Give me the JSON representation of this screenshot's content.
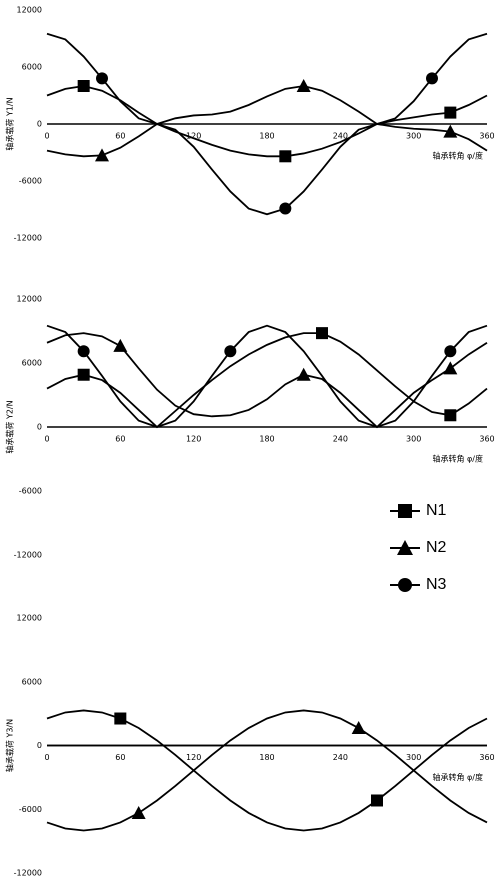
{
  "chart_data": [
    {
      "type": "line",
      "ylabel": "轴承载荷 Y1/N",
      "xlabel": "轴承转角 φ/度",
      "x": [
        0,
        15,
        30,
        45,
        60,
        75,
        90,
        105,
        120,
        135,
        150,
        165,
        180,
        195,
        210,
        225,
        240,
        255,
        270,
        285,
        300,
        315,
        330,
        345,
        360
      ],
      "xlim": [
        0,
        360
      ],
      "xticks": [
        0,
        60,
        120,
        180,
        240,
        300,
        360
      ],
      "ylim": [
        -12000,
        12000
      ],
      "yticks": [
        12000,
        6000,
        0,
        -6000,
        -12000
      ],
      "series": [
        {
          "color": "#000000",
          "marker": "square",
          "marker_at": [
            2,
            13,
            22
          ],
          "values": [
            3000,
            3700,
            4000,
            3500,
            2500,
            1200,
            0,
            -800,
            -1500,
            -2200,
            -2800,
            -3200,
            -3400,
            -3400,
            -3100,
            -2600,
            -1900,
            -1000,
            0,
            400,
            700,
            1000,
            1200,
            2000,
            3000
          ]
        },
        {
          "color": "#000000",
          "marker": "triangle",
          "marker_at": [
            3,
            14,
            22
          ],
          "values": [
            -2800,
            -3200,
            -3400,
            -3300,
            -2500,
            -1300,
            0,
            600,
            900,
            1000,
            1300,
            2000,
            2900,
            3700,
            4000,
            3500,
            2500,
            1300,
            0,
            -300,
            -500,
            -600,
            -800,
            -1600,
            -2800
          ]
        },
        {
          "color": "#000000",
          "marker": "circle",
          "marker_at": [
            3,
            13,
            21
          ],
          "values": [
            9500,
            8900,
            7100,
            4800,
            2400,
            600,
            0,
            -600,
            -2400,
            -4800,
            -7100,
            -8900,
            -9500,
            -8900,
            -7100,
            -4800,
            -2400,
            -600,
            0,
            600,
            2400,
            4800,
            7100,
            8900,
            9500
          ]
        }
      ]
    },
    {
      "type": "line",
      "ylabel": "轴承载荷 Y2/N",
      "xlabel": "轴承转角 φ/度",
      "legend": true,
      "x": [
        0,
        15,
        30,
        45,
        60,
        75,
        90,
        105,
        120,
        135,
        150,
        165,
        180,
        195,
        210,
        225,
        240,
        255,
        270,
        285,
        300,
        315,
        330,
        345,
        360
      ],
      "xlim": [
        0,
        360
      ],
      "xticks": [
        0,
        60,
        120,
        180,
        240,
        300,
        360
      ],
      "ylim": [
        -12000,
        12000
      ],
      "yticks": [
        12000,
        6000,
        0,
        -6000,
        -12000
      ],
      "series": [
        {
          "name": "N1",
          "color": "#000000",
          "marker": "square",
          "marker_at": [
            2,
            15,
            22
          ],
          "values": [
            3600,
            4500,
            4900,
            4400,
            3200,
            1600,
            0,
            1500,
            3000,
            4400,
            5700,
            6800,
            7700,
            8400,
            8800,
            8800,
            8000,
            6800,
            5300,
            3800,
            2400,
            1400,
            1100,
            2200,
            3600
          ]
        },
        {
          "name": "N2",
          "color": "#000000",
          "marker": "triangle",
          "marker_at": [
            4,
            14,
            22
          ],
          "values": [
            7900,
            8600,
            8800,
            8500,
            7600,
            5500,
            3500,
            2000,
            1200,
            1000,
            1100,
            1600,
            2600,
            4000,
            4900,
            4500,
            3200,
            1600,
            0,
            1600,
            3200,
            4400,
            5500,
            6800,
            7900
          ]
        },
        {
          "name": "N3",
          "color": "#000000",
          "marker": "circle",
          "marker_at": [
            2,
            10,
            22
          ],
          "values": [
            9500,
            8900,
            7100,
            4800,
            2400,
            600,
            0,
            600,
            2400,
            4800,
            7100,
            8900,
            9500,
            8900,
            7100,
            4800,
            2400,
            600,
            0,
            600,
            2400,
            4800,
            7100,
            8900,
            9500
          ]
        }
      ]
    },
    {
      "type": "line",
      "ylabel": "轴承载荷 Y3/N",
      "xlabel": "轴承转角 φ/度",
      "x": [
        0,
        15,
        30,
        45,
        60,
        75,
        90,
        105,
        120,
        135,
        150,
        165,
        180,
        195,
        210,
        225,
        240,
        255,
        270,
        285,
        300,
        315,
        330,
        345,
        360
      ],
      "xlim": [
        0,
        360
      ],
      "xticks": [
        0,
        60,
        120,
        180,
        240,
        300,
        360
      ],
      "ylim": [
        -12000,
        12000
      ],
      "yticks": [
        12000,
        6000,
        0,
        -6000,
        -12000
      ],
      "series": [
        {
          "color": "#000000",
          "marker": "square",
          "marker_at": [
            4,
            18
          ],
          "values": [
            2540,
            3110,
            3300,
            3110,
            2540,
            1650,
            475,
            -890,
            -2350,
            -3810,
            -5175,
            -6345,
            -7245,
            -7810,
            -8000,
            -7810,
            -7245,
            -6345,
            -5175,
            -3810,
            -2350,
            -890,
            475,
            1650,
            2540
          ]
        },
        {
          "color": "#000000",
          "marker": "triangle",
          "marker_at": [
            5,
            17
          ],
          "values": [
            -7240,
            -7810,
            -8000,
            -7810,
            -7240,
            -6350,
            -5175,
            -3810,
            -2350,
            -890,
            475,
            1645,
            2545,
            3110,
            3300,
            3110,
            2545,
            1645,
            475,
            -890,
            -2350,
            -3810,
            -5175,
            -6350,
            -7240
          ]
        },
        {
          "color": "#000000",
          "marker": "circle",
          "values": [
            0,
            0,
            0,
            0,
            0,
            0,
            0,
            0,
            0,
            0,
            0,
            0,
            0,
            0,
            0,
            0,
            0,
            0,
            0,
            0,
            0,
            0,
            0,
            0,
            0
          ]
        }
      ]
    }
  ]
}
